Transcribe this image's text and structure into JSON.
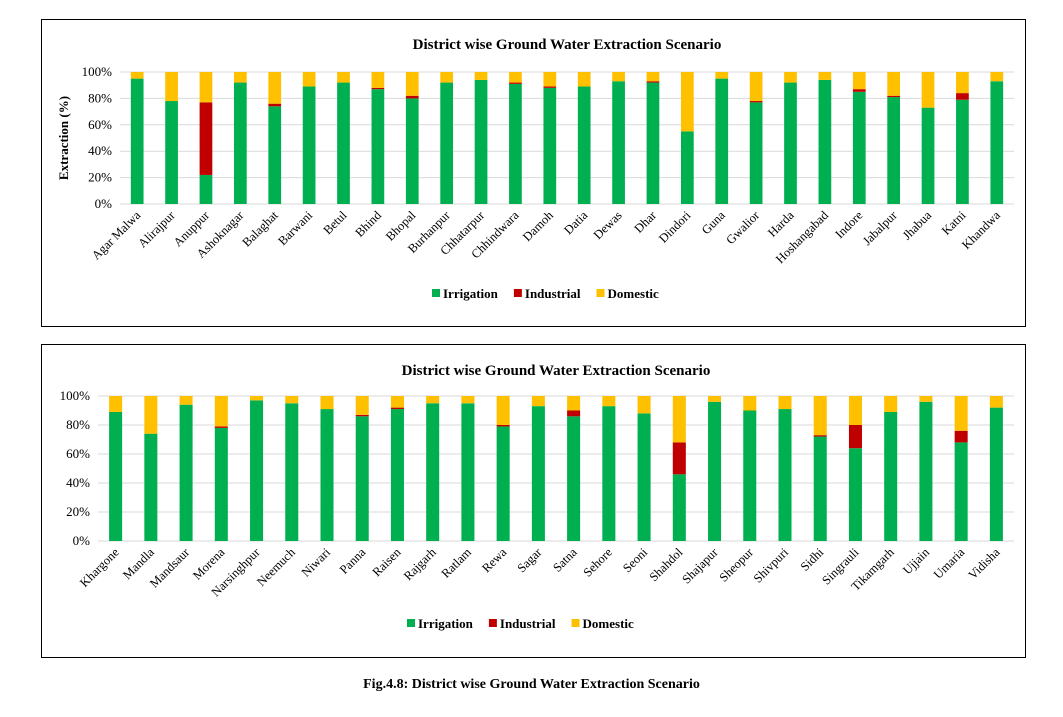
{
  "caption": "Fig.4.8: District wise Ground Water Extraction Scenario",
  "colors": {
    "irrigation": "#00B050",
    "industrial": "#C00000",
    "domestic": "#FFC000",
    "gridline": "#d9d9d9"
  },
  "chart_data": [
    {
      "type": "bar",
      "stacked": true,
      "title": "District wise Ground Water Extraction Scenario",
      "ylabel": "Extraction (%)",
      "xlabel": "",
      "ylim": [
        0,
        100
      ],
      "yticks": [
        "0%",
        "20%",
        "40%",
        "60%",
        "80%",
        "100%"
      ],
      "grid": true,
      "legend_position": "bottom",
      "categories": [
        "Agar Malwa",
        "Alirajpur",
        "Anuppur",
        "Ashoknagar",
        "Balaghat",
        "Barwani",
        "Betul",
        "Bhind",
        "Bhopal",
        "Burhanpur",
        "Chhatarpur",
        "Chhindwara",
        "Damoh",
        "Datia",
        "Dewas",
        "Dhar",
        "Dindori",
        "Guna",
        "Gwalior",
        "Harda",
        "Hoshangabad",
        "Indore",
        "Jabalpur",
        "Jhabua",
        "Katni",
        "Khandwa"
      ],
      "series": [
        {
          "name": "Irrigation",
          "values": [
            95,
            78,
            22,
            92,
            74,
            89,
            92,
            87,
            80,
            92,
            94,
            91,
            88,
            89,
            93,
            92,
            55,
            95,
            77,
            92,
            94,
            85,
            81,
            73,
            79,
            93
          ]
        },
        {
          "name": "Industrial",
          "values": [
            0,
            0,
            55,
            0,
            2,
            0,
            0,
            1,
            2,
            0,
            0,
            1,
            1,
            0,
            0,
            1,
            0,
            0,
            1,
            0,
            0,
            2,
            1,
            0,
            5,
            0
          ]
        },
        {
          "name": "Domestic",
          "values": [
            5,
            22,
            23,
            8,
            24,
            11,
            8,
            12,
            18,
            8,
            6,
            8,
            11,
            11,
            7,
            7,
            45,
            5,
            22,
            8,
            6,
            13,
            18,
            27,
            16,
            7
          ]
        }
      ]
    },
    {
      "type": "bar",
      "stacked": true,
      "title": "District wise Ground Water Extraction Scenario",
      "ylabel": "",
      "xlabel": "",
      "ylim": [
        0,
        100
      ],
      "yticks": [
        "0%",
        "20%",
        "40%",
        "60%",
        "80%",
        "100%"
      ],
      "grid": true,
      "legend_position": "bottom",
      "categories": [
        "Khargone",
        "Mandla",
        "Mandsaur",
        "Morena",
        "Narsinghpur",
        "Neemuch",
        "Niwari",
        "Panna",
        "Raisen",
        "Rajgarh",
        "Ratlam",
        "Rewa",
        "Sagar",
        "Satna",
        "Sehore",
        "Seoni",
        "Shahdol",
        "Shajapur",
        "Sheopur",
        "Shivpuri",
        "Sidhi",
        "Singrauli",
        "Tikamgarh",
        "Ujjain",
        "Umaria",
        "Vidisha"
      ],
      "series": [
        {
          "name": "Irrigation",
          "values": [
            89,
            74,
            94,
            78,
            97,
            95,
            91,
            86,
            91,
            95,
            95,
            79,
            93,
            86,
            93,
            88,
            46,
            96,
            90,
            91,
            72,
            64,
            89,
            96,
            68,
            92
          ]
        },
        {
          "name": "Industrial",
          "values": [
            0,
            0,
            0,
            1,
            0,
            0,
            0,
            1,
            1,
            0,
            0,
            1,
            0,
            4,
            0,
            0,
            22,
            0,
            0,
            0,
            1,
            16,
            0,
            0,
            8,
            0
          ]
        },
        {
          "name": "Domestic",
          "values": [
            11,
            26,
            6,
            21,
            3,
            5,
            9,
            13,
            8,
            5,
            5,
            20,
            7,
            10,
            7,
            12,
            32,
            4,
            10,
            9,
            27,
            20,
            11,
            4,
            24,
            8
          ]
        }
      ]
    }
  ]
}
